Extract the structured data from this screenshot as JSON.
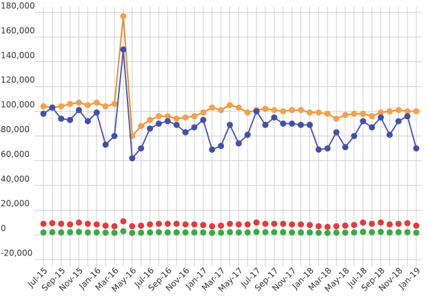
{
  "chart_data": {
    "type": "line",
    "categories": [
      "Jul-15",
      null,
      "Sep-15",
      null,
      "Nov-15",
      null,
      "Jan-16",
      null,
      "Mar-16",
      null,
      "May-16",
      null,
      "Jul-16",
      null,
      "Sep-16",
      null,
      "Nov-16",
      null,
      "Jan-17",
      null,
      "Mar-17",
      null,
      "May-17",
      null,
      "Jul-17",
      null,
      "Sep-17",
      null,
      "Nov-17",
      null,
      "Jan-18",
      null,
      "Mar-18",
      null,
      "May-18",
      null,
      "Jul-18",
      null,
      "Sep-18",
      null,
      "Nov-18",
      null,
      "Jan-19"
    ],
    "series": [
      {
        "color": "#f5a04a",
        "line": "#f08a2a",
        "values": [
          104000,
          103000,
          104000,
          106000,
          107000,
          105000,
          107000,
          104000,
          106000,
          177000,
          80000,
          88000,
          93000,
          96000,
          96000,
          94000,
          95000,
          96000,
          99000,
          103000,
          101000,
          105000,
          103000,
          99000,
          101000,
          102000,
          101000,
          100000,
          101000,
          101000,
          99000,
          99000,
          98000,
          94000,
          97000,
          98000,
          98000,
          96000,
          99000,
          100000,
          101000,
          100000,
          100000
        ]
      },
      {
        "color": "#4450a8",
        "line": "#4a5cb8",
        "values": [
          98000,
          103000,
          94000,
          93000,
          101000,
          92000,
          99000,
          73000,
          80000,
          150000,
          62000,
          70000,
          86000,
          90000,
          92000,
          89000,
          83000,
          87000,
          93000,
          69000,
          72000,
          89000,
          74000,
          81000,
          100000,
          89000,
          95000,
          90000,
          90000,
          89000,
          89000,
          69000,
          70000,
          83000,
          71000,
          80000,
          92000,
          87000,
          95000,
          81000,
          92000,
          96000,
          70000
        ]
      },
      {
        "color": "#e03c3c",
        "line": "none",
        "values": [
          9000,
          9500,
          9000,
          8500,
          10000,
          9000,
          8500,
          7500,
          7000,
          11000,
          7000,
          7500,
          8500,
          9000,
          9000,
          9000,
          8500,
          8500,
          8000,
          7000,
          7500,
          9000,
          8500,
          8500,
          10000,
          9000,
          9000,
          9000,
          8500,
          8500,
          8000,
          7000,
          6500,
          7000,
          7500,
          8000,
          10000,
          9000,
          10000,
          8500,
          9000,
          9500,
          7500
        ]
      },
      {
        "color": "#3aaa44",
        "line": "none",
        "values": [
          2000,
          2200,
          2000,
          2200,
          2400,
          2000,
          2000,
          1800,
          1700,
          3000,
          1600,
          1800,
          2000,
          2200,
          2000,
          2000,
          2000,
          2000,
          2000,
          1700,
          1800,
          2200,
          2000,
          2000,
          2400,
          2200,
          2200,
          2200,
          2000,
          2000,
          2000,
          1700,
          1600,
          1800,
          1800,
          2000,
          2400,
          2200,
          2400,
          2000,
          2200,
          2200,
          1800
        ]
      }
    ],
    "ylim": [
      -20000,
      180000
    ],
    "yticks": [
      {
        "value": -20000,
        "label": "-20,000"
      },
      0,
      {
        "value": 20000,
        "label": "20,000"
      },
      {
        "value": 40000,
        "label": "40,000"
      },
      {
        "value": 60000,
        "label": "60,000"
      },
      {
        "value": 80000,
        "label": "80,000"
      },
      {
        "value": 100000,
        "label": "100,000"
      },
      {
        "value": 120000,
        "label": "120,000"
      },
      {
        "value": 140000,
        "label": "140,000"
      },
      {
        "value": 160000,
        "label": "160,000"
      },
      {
        "value": 180000,
        "label": "180,000"
      }
    ],
    "grid": true
  }
}
